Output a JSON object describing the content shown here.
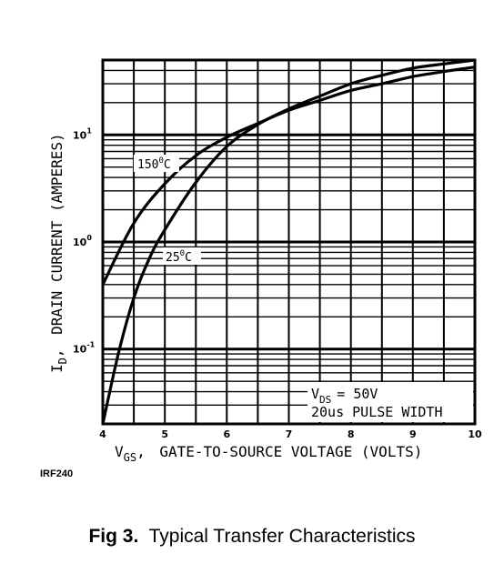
{
  "chart_data": {
    "type": "line",
    "title": "",
    "xlabel": "GATE-TO-SOURCE VOLTAGE (VOLTS)",
    "xlabel_symbol": "V",
    "xlabel_subscript": "GS",
    "ylabel": "DRAIN CURRENT (AMPERES)",
    "ylabel_symbol": "I",
    "ylabel_subscript": "D",
    "xlim": [
      4,
      10
    ],
    "ylim": [
      0.02,
      50
    ],
    "yscale": "log",
    "x_ticks": [
      "4",
      "5",
      "6",
      "7",
      "8",
      "9",
      "10"
    ],
    "y_ticks": [
      {
        "base": "10",
        "exp": "1",
        "value": 10
      },
      {
        "base": "10",
        "exp": "0",
        "value": 1
      },
      {
        "base": "10",
        "exp": "-1",
        "value": 0.1
      }
    ],
    "grid": true,
    "series": [
      {
        "name": "150°C",
        "label_base": "150",
        "label_sup": "0",
        "label_unit": "C",
        "points": [
          [
            4.0,
            0.4
          ],
          [
            4.5,
            1.5
          ],
          [
            5.0,
            3.5
          ],
          [
            5.5,
            6.4
          ],
          [
            6.0,
            9.5
          ],
          [
            6.5,
            12.8
          ],
          [
            7.0,
            17.0
          ],
          [
            7.5,
            21.0
          ],
          [
            8.0,
            26.0
          ],
          [
            8.5,
            30.0
          ],
          [
            9.0,
            35.0
          ],
          [
            9.5,
            39.0
          ],
          [
            10.0,
            43.0
          ]
        ]
      },
      {
        "name": "25°C",
        "label_base": "25",
        "label_sup": "0",
        "label_unit": "C",
        "points": [
          [
            4.0,
            0.02
          ],
          [
            4.25,
            0.09
          ],
          [
            4.5,
            0.3
          ],
          [
            4.75,
            0.7
          ],
          [
            5.0,
            1.3
          ],
          [
            5.5,
            3.6
          ],
          [
            6.0,
            7.8
          ],
          [
            6.5,
            12.5
          ],
          [
            7.0,
            17.5
          ],
          [
            7.5,
            23.0
          ],
          [
            8.0,
            30.0
          ],
          [
            8.5,
            36.0
          ],
          [
            9.0,
            42.0
          ],
          [
            9.5,
            46.0
          ],
          [
            10.0,
            50.0
          ]
        ]
      }
    ],
    "annotations": [
      {
        "symbol": "V",
        "subscript": "DS",
        "text": "= 50V"
      },
      {
        "text": "20us PULSE WIDTH"
      }
    ]
  },
  "part_number": "IRF240",
  "caption": {
    "prefix": "Fig 3.",
    "text": "Typical Transfer Characteristics"
  }
}
